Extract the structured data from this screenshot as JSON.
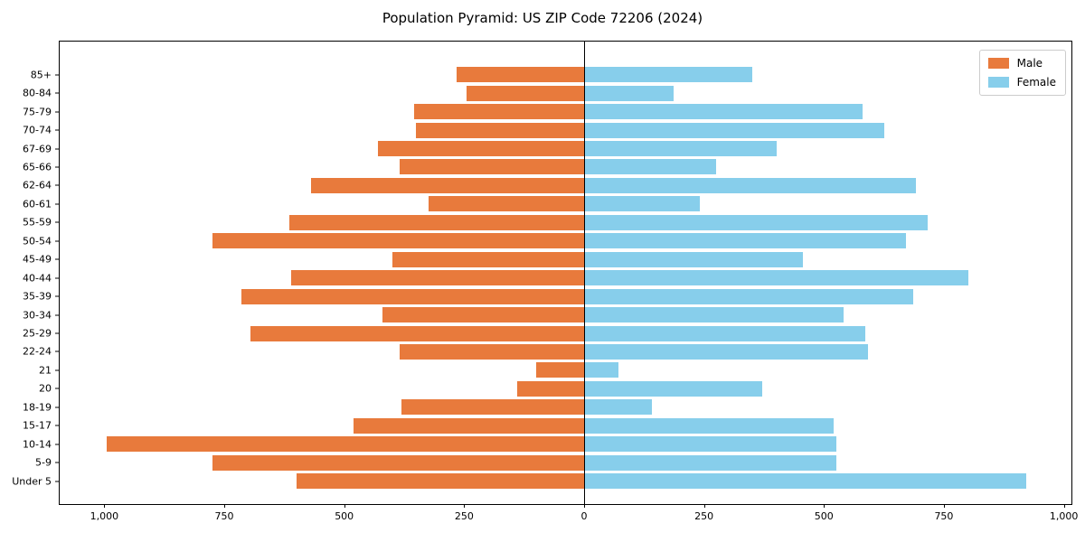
{
  "title": "Population Pyramid: US ZIP Code 72206 (2024)",
  "legend": {
    "male_label": "Male",
    "female_label": "Female"
  },
  "colors": {
    "male": "#E87A3C",
    "female": "#87CEEB",
    "axis": "#000000",
    "legend_border": "#cccccc",
    "background": "#ffffff"
  },
  "chart_data": {
    "type": "bar",
    "subtype": "population-pyramid",
    "title": "Population Pyramid: US ZIP Code 72206 (2024)",
    "orientation": "horizontal",
    "grid": false,
    "legend_position": "upper right",
    "categories_top_to_bottom": [
      "85+",
      "80-84",
      "75-79",
      "70-74",
      "67-69",
      "65-66",
      "62-64",
      "60-61",
      "55-59",
      "50-54",
      "45-49",
      "40-44",
      "35-39",
      "30-34",
      "25-29",
      "22-24",
      "21",
      "20",
      "18-19",
      "15-17",
      "10-14",
      "5-9",
      "Under 5"
    ],
    "series": [
      {
        "name": "Male",
        "side": "left",
        "color": "#E87A3C",
        "values": [
          265,
          245,
          355,
          350,
          430,
          385,
          570,
          325,
          615,
          775,
          400,
          610,
          715,
          420,
          695,
          385,
          100,
          140,
          380,
          480,
          995,
          775,
          600
        ]
      },
      {
        "name": "Female",
        "side": "right",
        "color": "#87CEEB",
        "values": [
          350,
          185,
          580,
          625,
          400,
          275,
          690,
          240,
          715,
          670,
          455,
          800,
          685,
          540,
          585,
          590,
          70,
          370,
          140,
          520,
          525,
          525,
          920
        ]
      }
    ],
    "x_tick_values": [
      -1000,
      -750,
      -500,
      -250,
      0,
      250,
      500,
      750,
      1000
    ],
    "x_tick_labels": [
      "1,000",
      "750",
      "500",
      "250",
      "0",
      "250",
      "500",
      "750",
      "1,000"
    ],
    "xlim": [
      -1095,
      1020
    ],
    "x_axis_note": "tick labels show absolute counts on both sides of zero"
  }
}
